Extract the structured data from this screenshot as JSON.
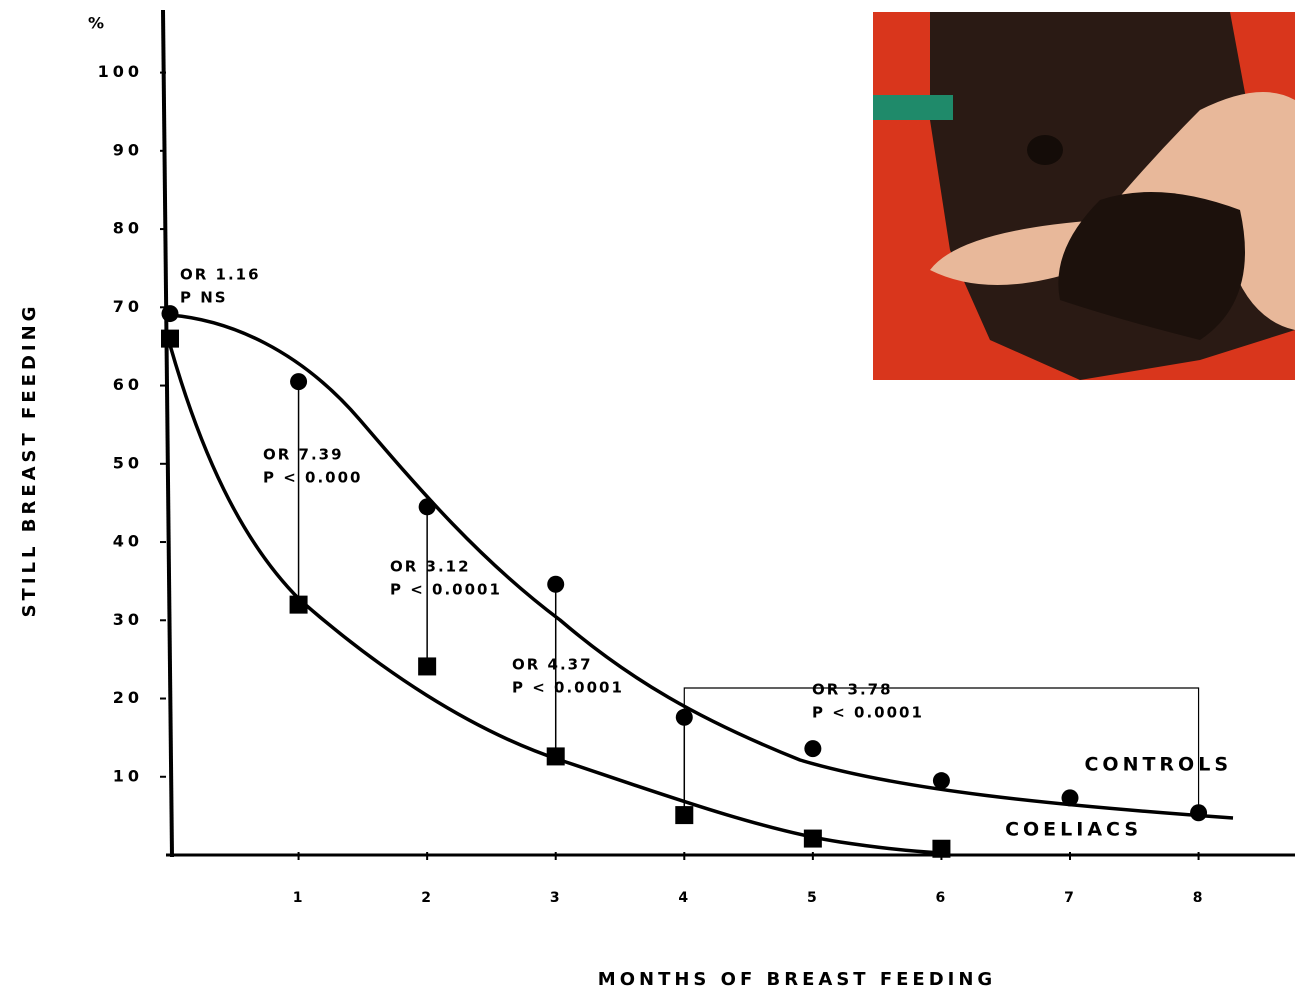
{
  "chart_data": {
    "type": "line",
    "x_label": "MONTHS OF BREAST FEEDING",
    "y_label": "STILL BREAST FEEDING",
    "y_unit": "%",
    "xlim": [
      0,
      8.75
    ],
    "ylim": [
      0,
      108
    ],
    "xticks": [
      1,
      2,
      3,
      4,
      5,
      6,
      7,
      8
    ],
    "yticks": [
      10,
      20,
      30,
      40,
      50,
      60,
      70,
      80,
      90,
      100
    ],
    "series": [
      {
        "name": "CONTROLS",
        "color": "#000000",
        "marker": "circle",
        "x": [
          0,
          1,
          2,
          3,
          4,
          5,
          6,
          7,
          8
        ],
        "values": [
          69.2,
          60.5,
          44.5,
          34.6,
          17.6,
          13.6,
          9.5,
          7.3,
          5.4
        ]
      },
      {
        "name": "COELIACS",
        "color": "#000000",
        "marker": "square",
        "x": [
          0,
          1,
          2,
          3,
          4,
          5,
          6
        ],
        "values": [
          66,
          32,
          24.1,
          12.6,
          5.1,
          2.1,
          0.8
        ]
      }
    ],
    "annotations": [
      [
        "OR  1.16",
        "P    NS"
      ],
      [
        "OR    7.39",
        "P   < 0.000"
      ],
      [
        "OR  3.12",
        "P  < 0.0001"
      ],
      [
        "OR  4.37",
        "P  < 0.0001"
      ],
      [
        "OR   3.78",
        "P < 0.0001"
      ]
    ]
  }
}
